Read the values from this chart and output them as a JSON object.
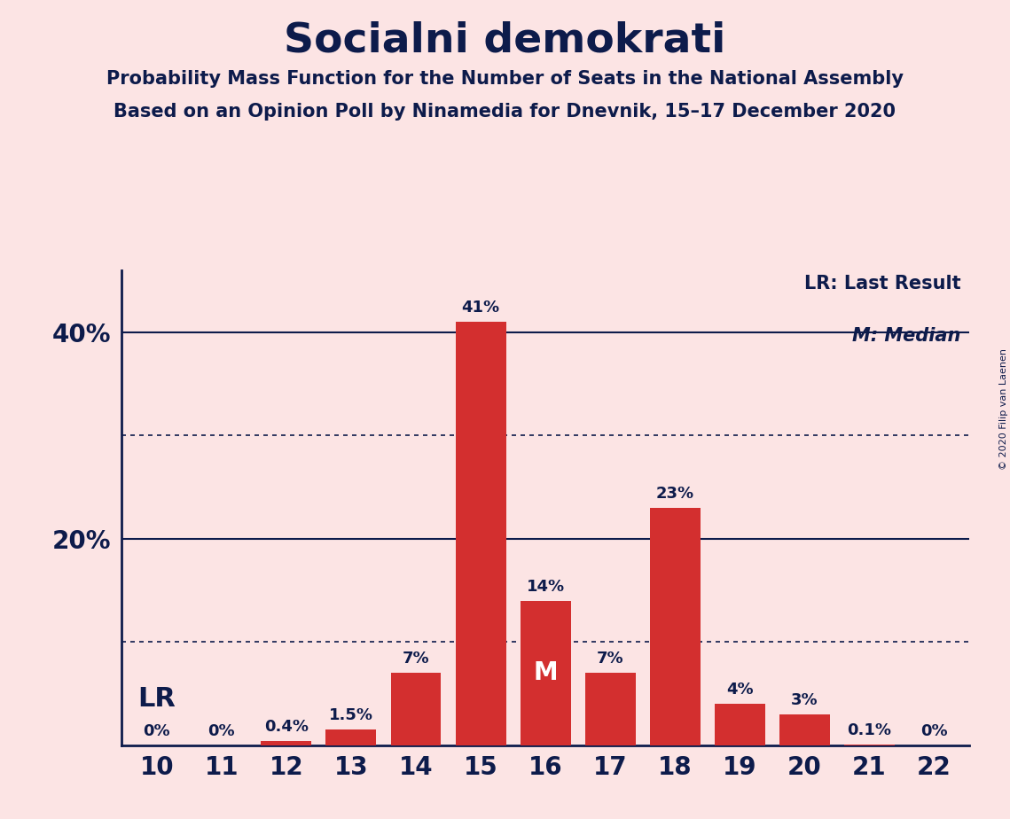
{
  "title": "Socialni demokrati",
  "subtitle1": "Probability Mass Function for the Number of Seats in the National Assembly",
  "subtitle2": "Based on an Opinion Poll by Ninamedia for Dnevnik, 15–17 December 2020",
  "copyright": "© 2020 Filip van Laenen",
  "categories": [
    10,
    11,
    12,
    13,
    14,
    15,
    16,
    17,
    18,
    19,
    20,
    21,
    22
  ],
  "values": [
    0.0,
    0.0,
    0.4,
    1.5,
    7.0,
    41.0,
    14.0,
    7.0,
    23.0,
    4.0,
    3.0,
    0.1,
    0.0
  ],
  "labels": [
    "0%",
    "0%",
    "0.4%",
    "1.5%",
    "7%",
    "41%",
    "14%",
    "7%",
    "23%",
    "4%",
    "3%",
    "0.1%",
    "0%"
  ],
  "bar_color": "#d32f2f",
  "background_color": "#fce4e4",
  "text_color": "#0d1b4b",
  "median_seat": 16,
  "lr_seat": 10,
  "solid_gridlines": [
    20,
    40
  ],
  "dotted_gridlines": [
    10,
    30
  ],
  "ylim": [
    0,
    46
  ],
  "legend_lr": "LR: Last Result",
  "legend_m": "M: Median"
}
